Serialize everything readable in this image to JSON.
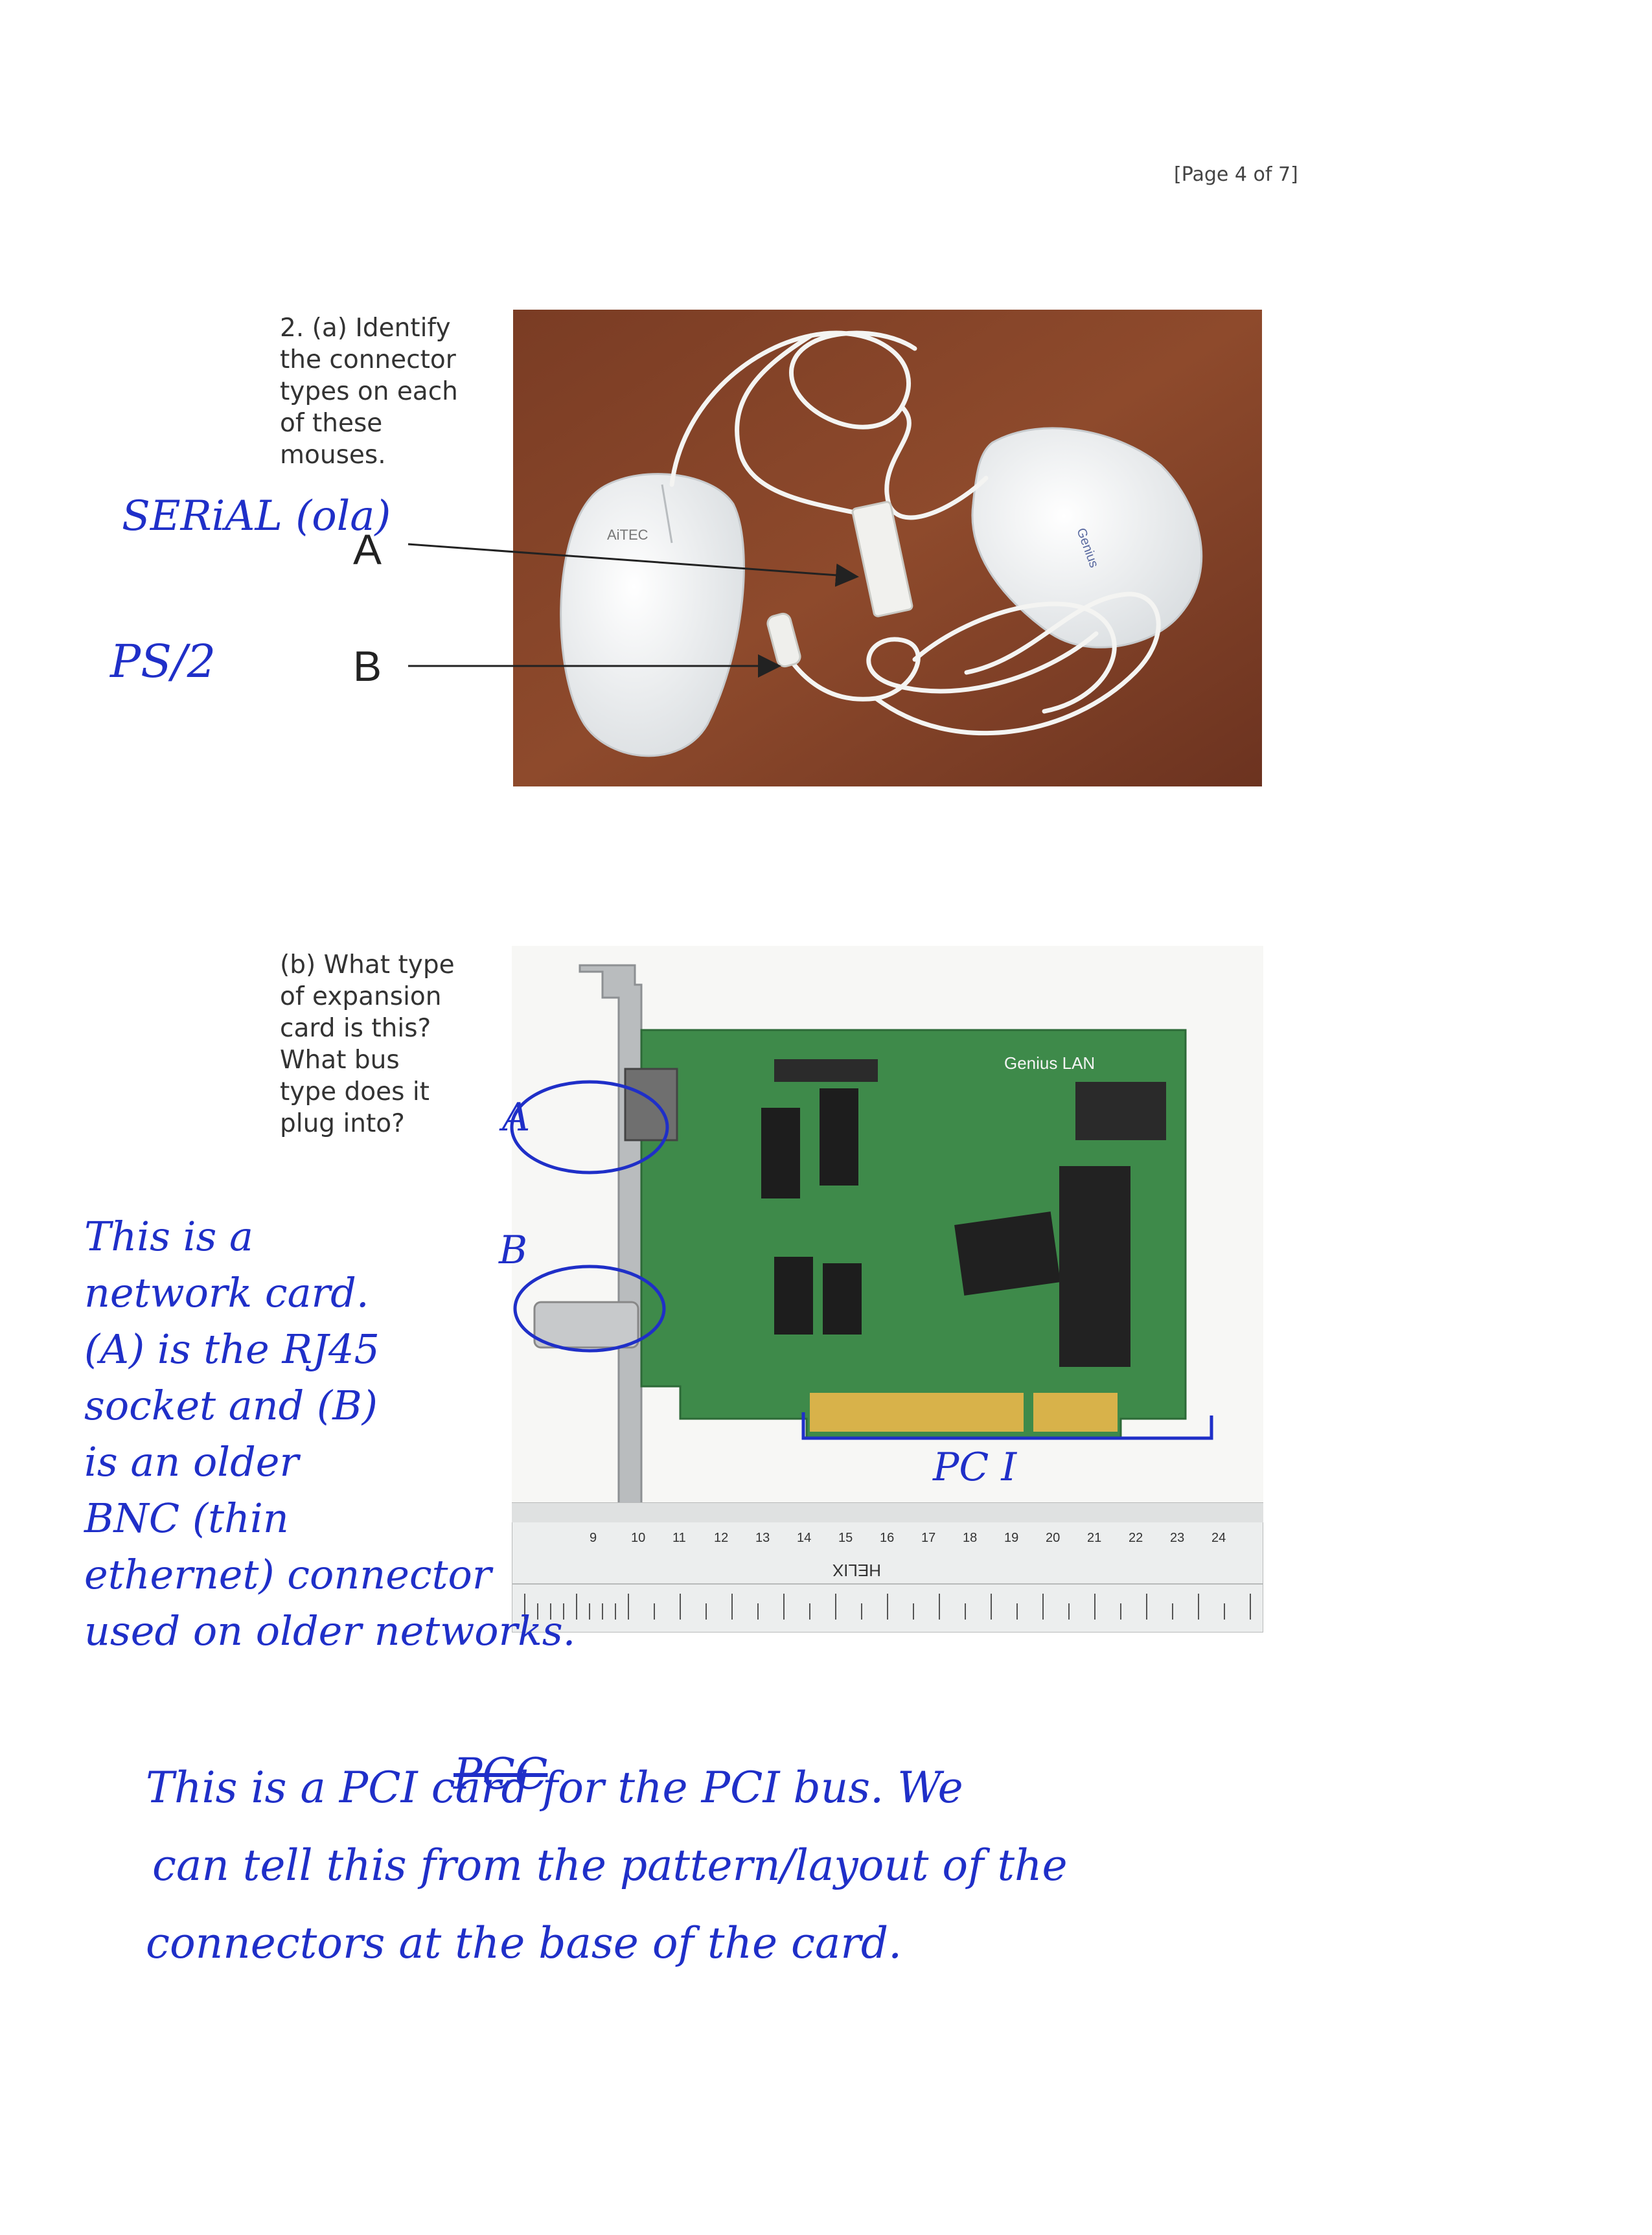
{
  "page": {
    "number": "[Page 4 of 7]"
  },
  "question_a": {
    "text": "2. (a) Identify\nthe connector\ntypes on each\nof these\nmouses.",
    "label_a": "A",
    "label_b": "B",
    "answer_a": "SERiAL (ola)",
    "answer_b": "PS/2",
    "mouse_brand_left": "AiTEC",
    "mouse_brand_right": "Genius"
  },
  "question_b": {
    "text": "(b) What type\nof expansion\ncard is this?\nWhat bus\ntype does it\nplug into?",
    "circle_label_a": "A",
    "circle_label_b": "B",
    "bus_label": "PC I",
    "card_brand": "Genius LAN",
    "ruler_brand": "HELIX",
    "ruler_numbers": [
      "9",
      "10",
      "11",
      "12",
      "13",
      "14",
      "15",
      "16",
      "17",
      "18",
      "19",
      "20",
      "21",
      "22",
      "23",
      "24"
    ],
    "side_answer_lines": [
      "This is a",
      "network card.",
      "(A) is the RJ45",
      "socket and (B)",
      "is an older",
      "BNC (thin",
      "ethernet) connector",
      "used on   older networks."
    ],
    "bottom_answer_lines": [
      "This is a PCI card for the PCI bus. We",
      "can tell this from the pattern/layout of the",
      "connectors at the base of the card."
    ],
    "struck_word": "PCC"
  }
}
